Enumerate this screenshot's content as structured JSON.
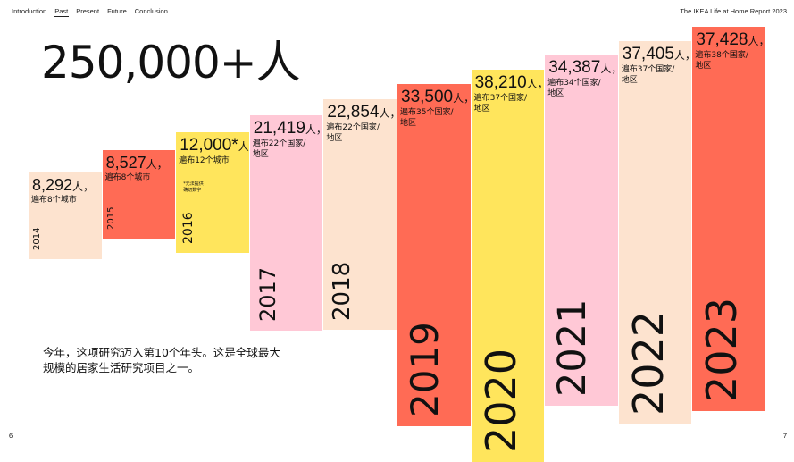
{
  "nav": {
    "items": [
      {
        "label": "Introduction",
        "active": false
      },
      {
        "label": "Past",
        "active": true
      },
      {
        "label": "Present",
        "active": false
      },
      {
        "label": "Future",
        "active": false
      },
      {
        "label": "Conclusion",
        "active": false
      }
    ]
  },
  "report_title": "The IKEA Life at Home Report 2023",
  "headline": "250,000+人",
  "body_text": "今年，这项研究迈入第10个年头。这是全球最大规模的居家生活研究项目之一。",
  "page_left": "6",
  "page_right": "7",
  "chart_data": {
    "type": "bar",
    "title": "",
    "xlabel": "",
    "ylabel": "",
    "ylim": [
      0,
      40000
    ],
    "categories": [
      "2014",
      "2015",
      "2016",
      "2017",
      "2018",
      "2019",
      "2020",
      "2021",
      "2022",
      "2023"
    ],
    "values": [
      8292,
      8527,
      12000,
      21419,
      22854,
      33500,
      38210,
      34387,
      37405,
      37428
    ],
    "value_labels": [
      "8,292",
      "8,527",
      "12,000*",
      "21,419",
      "22,854",
      "33,500",
      "38,210",
      "34,387",
      "37,405",
      "37,428"
    ],
    "value_suffix": "人，",
    "descriptions": [
      [
        "遍布8个城市"
      ],
      [
        "遍布8个城市"
      ],
      [
        "遍布12个城市"
      ],
      [
        "遍布22个国家/",
        "地区"
      ],
      [
        "遍布22个国家/",
        "地区"
      ],
      [
        "遍布35个国家/",
        "地区"
      ],
      [
        "遍布37个国家/",
        "地区"
      ],
      [
        "遍布34个国家/",
        "地区"
      ],
      [
        "遍布37个国家/",
        "地区"
      ],
      [
        "遍布38个国家/",
        "地区"
      ]
    ],
    "note": [
      "*无法提供",
      "确切数字"
    ],
    "colors": [
      "#fde3cf",
      "#ff6b55",
      "#ffe55c",
      "#ffc8d6",
      "#fde3cf",
      "#ff6b55",
      "#ffe55c",
      "#ffc8d6",
      "#fde3cf",
      "#ff6b55"
    ]
  }
}
